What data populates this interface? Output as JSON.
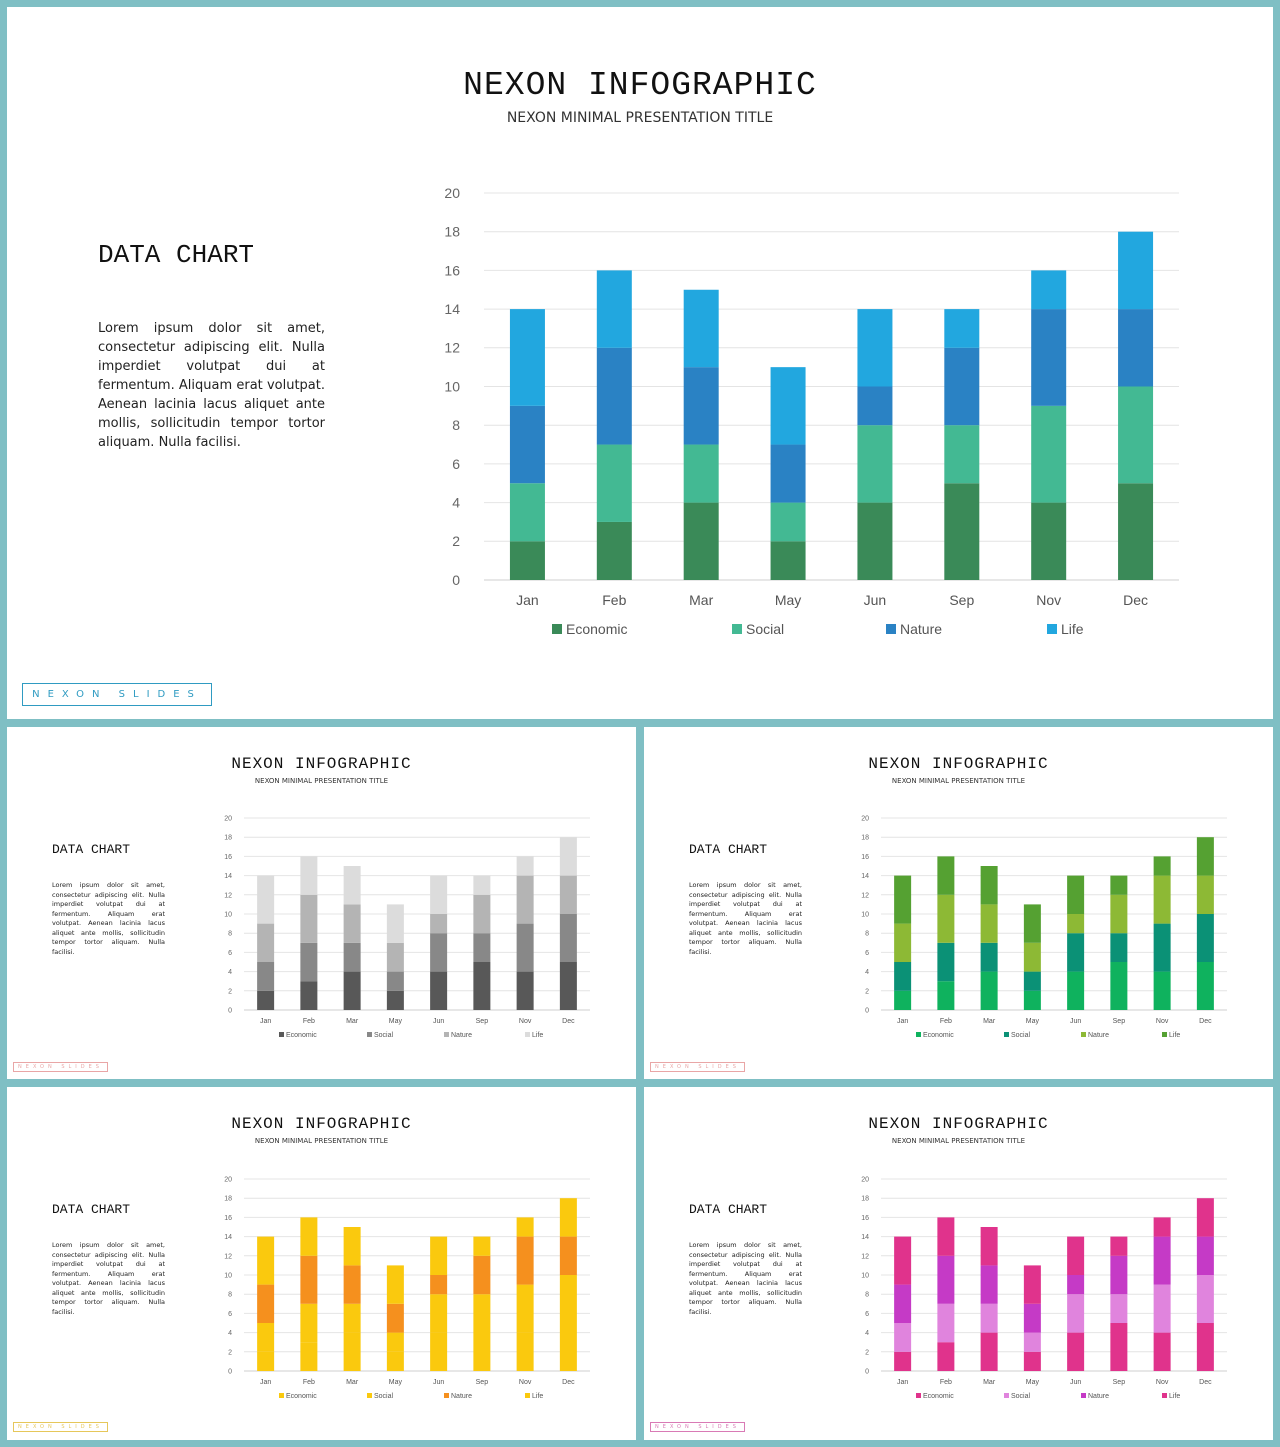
{
  "slides": [
    {
      "title": "NEXON INFOGRAPHIC",
      "subtitle": "NEXON MINIMAL PRESENTATION TITLE",
      "heading": "DATA CHART",
      "body": "Lorem ipsum dolor sit amet, consectetur adipiscing elit. Nulla imperdiet volutpat dui at fermentum. Aliquam erat volutpat. Aenean lacinia lacus aliquet ante mollis, sollicitudin tempor tortor aliquam. Nulla facilisi.",
      "brand": "NEXON SLIDES",
      "brand_color": "#2f9bc2",
      "palette": [
        "#3a8a58",
        "#43b993",
        "#2a82c4",
        "#22a7df"
      ]
    },
    {
      "title": "NEXON INFOGRAPHIC",
      "subtitle": "NEXON MINIMAL PRESENTATION TITLE",
      "heading": "DATA CHART",
      "body": "Lorem ipsum dolor sit amet, consectetur adipiscing elit. Nulla imperdiet volutpat dui at fermentum. Aliquam erat volutpat. Aenean lacinia lacus aliquet ante mollis, sollicitudin tempor tortor aliquam. Nulla facilisi.",
      "brand": "NEXON SLIDES",
      "brand_color": "#e9a6a6",
      "palette": [
        "#585858",
        "#888888",
        "#b4b4b4",
        "#dcdcdc"
      ]
    },
    {
      "title": "NEXON INFOGRAPHIC",
      "subtitle": "NEXON MINIMAL PRESENTATION TITLE",
      "heading": "DATA CHART",
      "body": "Lorem ipsum dolor sit amet, consectetur adipiscing elit. Nulla imperdiet volutpat dui at fermentum. Aliquam erat volutpat. Aenean lacinia lacus aliquet ante mollis, sollicitudin tempor tortor aliquam. Nulla facilisi.",
      "brand": "NEXON SLIDES",
      "brand_color": "#e9a6a6",
      "palette": [
        "#0fb25e",
        "#0b9176",
        "#8db935",
        "#55a132"
      ]
    },
    {
      "title": "NEXON INFOGRAPHIC",
      "subtitle": "NEXON MINIMAL PRESENTATION TITLE",
      "heading": "DATA CHART",
      "body": "Lorem ipsum dolor sit amet, consectetur adipiscing elit. Nulla imperdiet volutpat dui at fermentum. Aliquam erat volutpat. Aenean lacinia lacus aliquet ante mollis, sollicitudin tempor tortor aliquam. Nulla facilisi.",
      "brand": "NEXON SLIDES",
      "brand_color": "#e6c75a",
      "palette": [
        "#fac90e",
        "#fac90e",
        "#f5901e",
        "#fac90e"
      ]
    },
    {
      "title": "NEXON INFOGRAPHIC",
      "subtitle": "NEXON MINIMAL PRESENTATION TITLE",
      "heading": "DATA CHART",
      "body": "Lorem ipsum dolor sit amet, consectetur adipiscing elit. Nulla imperdiet volutpat dui at fermentum. Aliquam erat volutpat. Aenean lacinia lacus aliquet ante mollis, sollicitudin tempor tortor aliquam. Nulla facilisi.",
      "brand": "NEXON SLIDES",
      "brand_color": "#d97ab5",
      "palette": [
        "#e0338c",
        "#e084dd",
        "#c53ac6",
        "#e0338c"
      ]
    }
  ],
  "chart_data": {
    "type": "bar",
    "stacked": true,
    "categories": [
      "Jan",
      "Feb",
      "Mar",
      "May",
      "Jun",
      "Sep",
      "Nov",
      "Dec"
    ],
    "series": [
      {
        "name": "Economic",
        "values": [
          2,
          3,
          4,
          2,
          4,
          5,
          4,
          5
        ]
      },
      {
        "name": "Social",
        "values": [
          3,
          4,
          3,
          2,
          4,
          3,
          5,
          5
        ]
      },
      {
        "name": "Nature",
        "values": [
          4,
          5,
          4,
          3,
          2,
          4,
          5,
          4
        ]
      },
      {
        "name": "Life",
        "values": [
          5,
          4,
          4,
          4,
          4,
          2,
          2,
          4
        ]
      }
    ],
    "ylim": [
      0,
      20
    ],
    "yticks": [
      "0",
      "2",
      "4",
      "6",
      "8",
      "10",
      "12",
      "14",
      "16",
      "18",
      "20"
    ],
    "grid": true,
    "legend": "bottom"
  }
}
